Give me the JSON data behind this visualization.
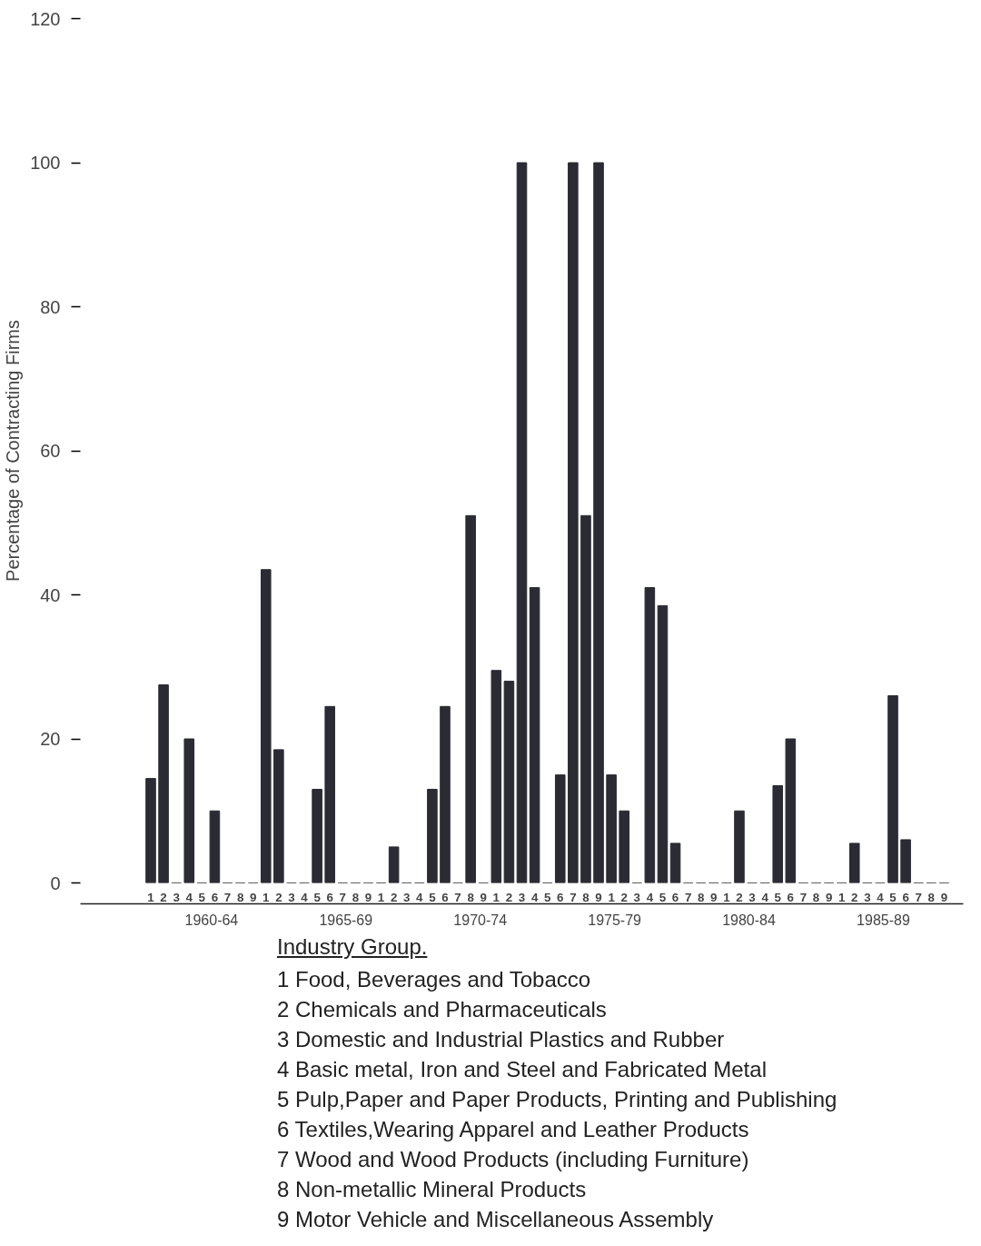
{
  "chart_data": {
    "type": "bar",
    "ylabel": "Percentage of Contracting Firms",
    "categories": [
      "1",
      "2",
      "3",
      "4",
      "5",
      "6",
      "7",
      "8",
      "9",
      "1",
      "2",
      "3",
      "4",
      "5",
      "6",
      "7",
      "8",
      "9",
      "1",
      "2",
      "3",
      "4",
      "5",
      "6",
      "7",
      "8",
      "9",
      "1",
      "2",
      "3",
      "4",
      "5",
      "6",
      "7",
      "8",
      "9",
      "1",
      "2",
      "3",
      "4",
      "5",
      "6",
      "7",
      "8",
      "9",
      "1",
      "2",
      "3",
      "4",
      "5",
      "6",
      "7",
      "8",
      "9",
      "1",
      "2",
      "3",
      "4",
      "5",
      "6",
      "7",
      "8",
      "9"
    ],
    "values": [
      14.5,
      27.5,
      0,
      20,
      0,
      10,
      0,
      0,
      0,
      43.5,
      18.5,
      0,
      0,
      13,
      24.5,
      0,
      0,
      0,
      0,
      5,
      0,
      0,
      13,
      24.5,
      0,
      51,
      0,
      29.5,
      28,
      100,
      41,
      0,
      15,
      100,
      51,
      100,
      15,
      10,
      0,
      41,
      38.5,
      5.5,
      0,
      0,
      0,
      0,
      10,
      0,
      0,
      13.5,
      20,
      0,
      0,
      0,
      0,
      5.5,
      0,
      0,
      26,
      6,
      0,
      0,
      0
    ],
    "color": "#2b2b33",
    "ylim": [
      0,
      120
    ],
    "yticks": [
      0,
      20,
      40,
      60,
      80,
      100,
      120
    ],
    "grid": false,
    "annotations": [
      "1960-64",
      "1965-69",
      "1970-74",
      "1975-79",
      "1980-84",
      "1985-89",
      "Industry Group.",
      "1 Food, Beverages and Tobacco",
      "2 Chemicals and Pharmaceuticals",
      "3 Domestic and Industrial Plastics and Rubber",
      "4 Basic metal, Iron and Steel and Fabricated Metal",
      "5 Pulp,Paper and Paper Products, Printing and Publishing",
      "6 Textiles,Wearing Apparel and Leather Products",
      "7 Wood and Wood Products (including Furniture)",
      "8 Non-metallic Mineral Products",
      "9 Motor Vehicle and Miscellaneous Assembly"
    ]
  }
}
